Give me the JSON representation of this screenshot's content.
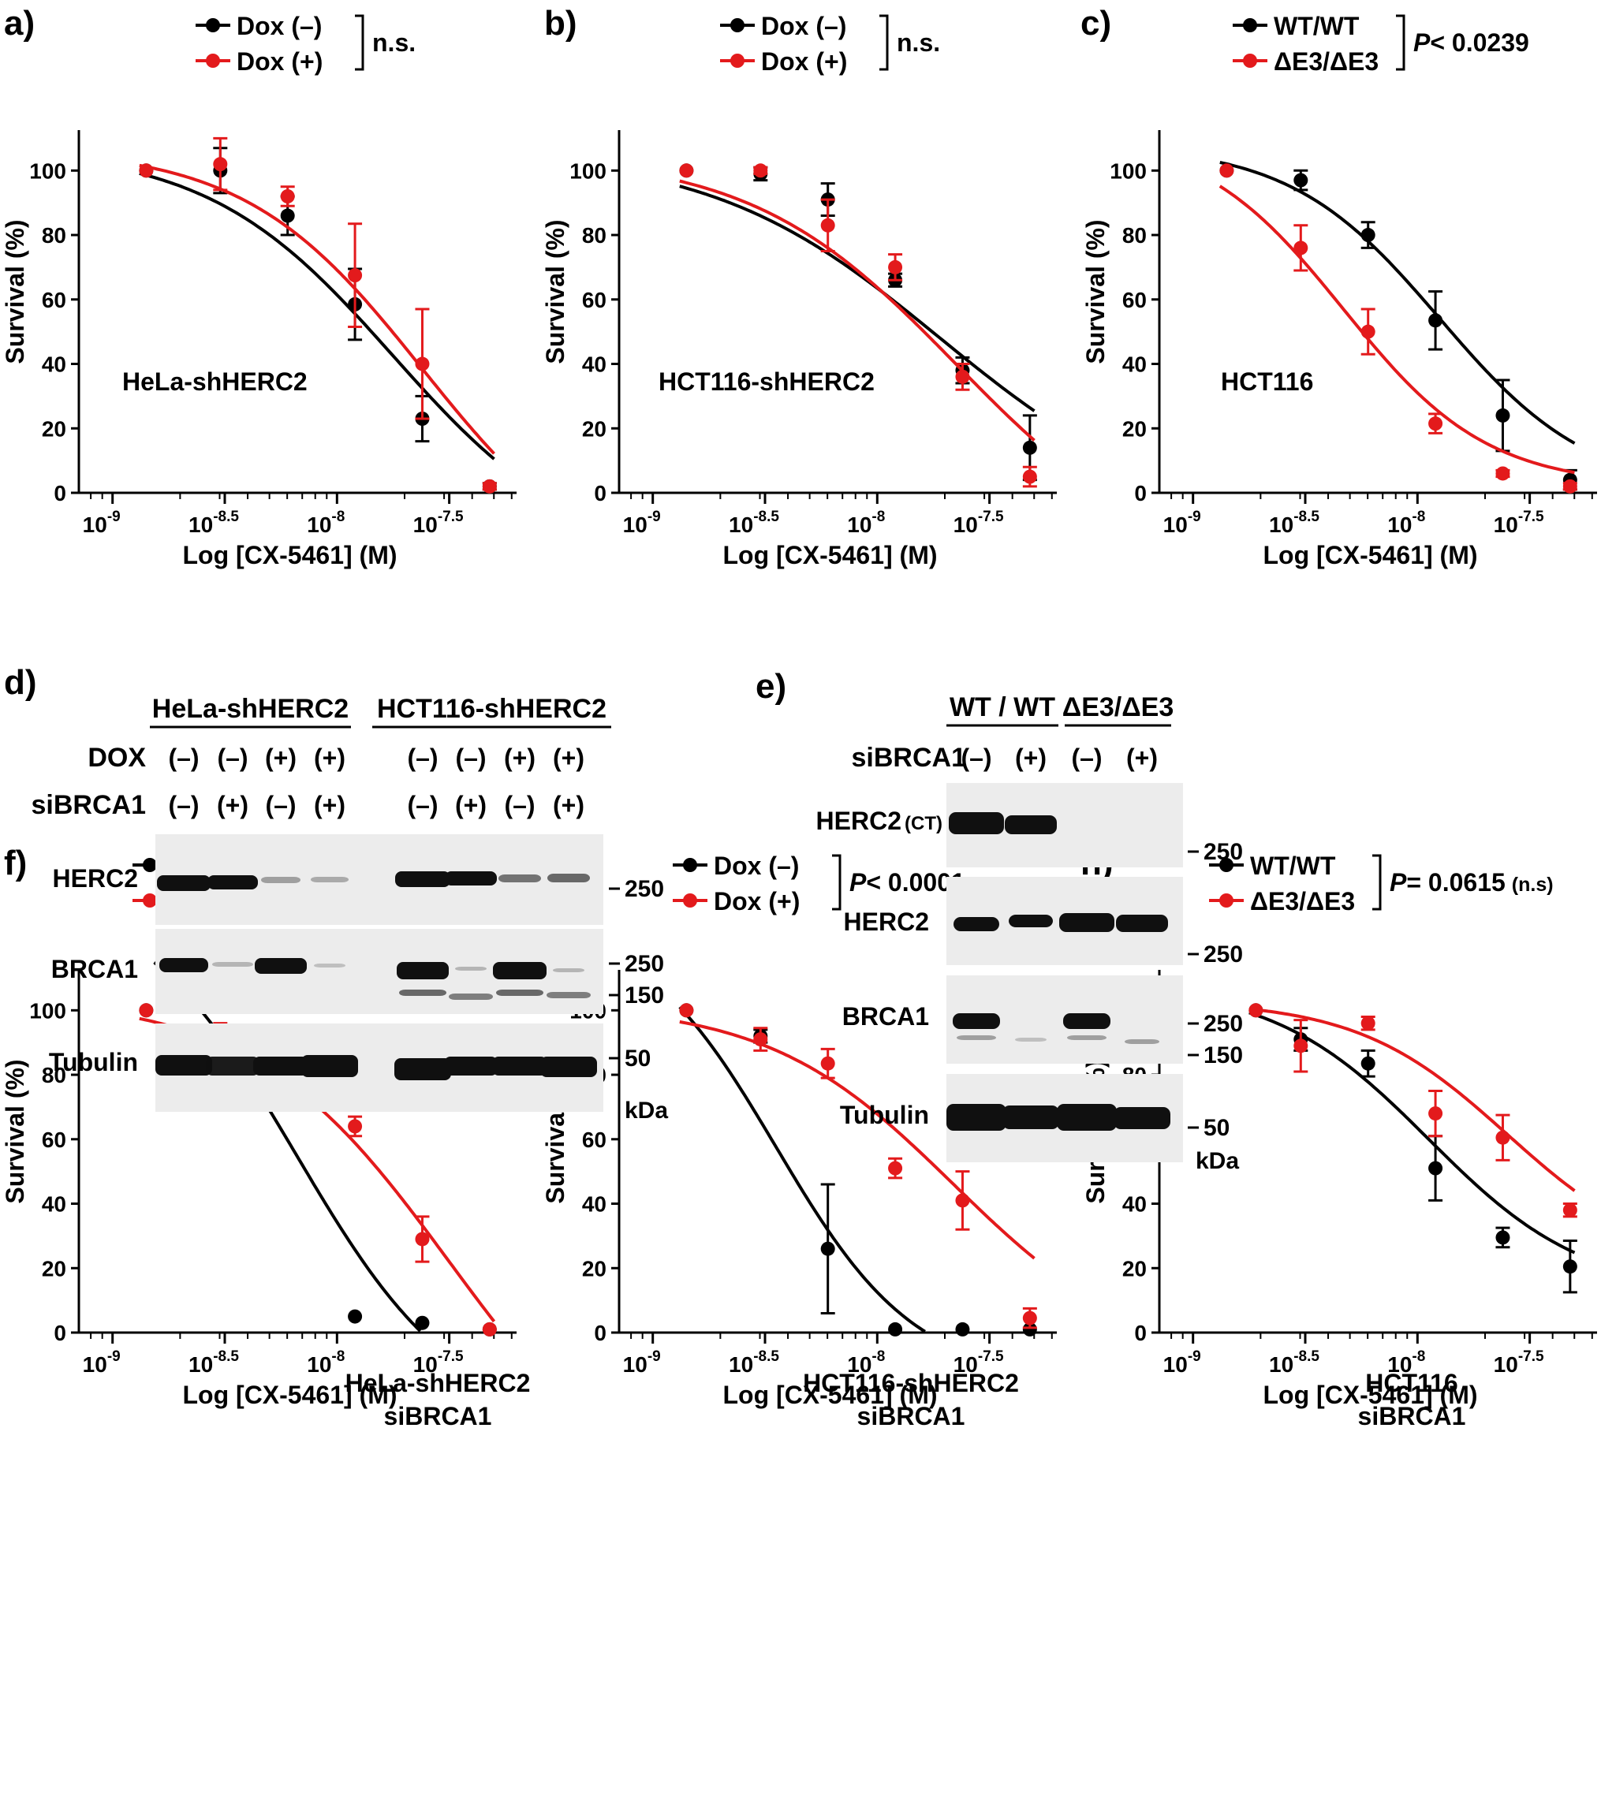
{
  "figure": {
    "colors": {
      "black": "#000000",
      "red": "#e31a1c",
      "blot_bg": "#ececec",
      "band": "#101010"
    },
    "panels_text": {
      "d": {
        "label": "d)",
        "groups": [
          "HeLa-shHERC2",
          "HCT116-shHERC2"
        ],
        "row_labels": [
          "DOX",
          "siBRCA1"
        ],
        "dox": [
          "(–)",
          "(–)",
          "(+)",
          "(+)",
          "(–)",
          "(–)",
          "(+)",
          "(+)"
        ],
        "sibrca1": [
          "(–)",
          "(+)",
          "(–)",
          "(+)",
          "(–)",
          "(+)",
          "(–)",
          "(+)"
        ],
        "blots": [
          "HERC2",
          "BRCA1",
          "Tubulin"
        ],
        "sizes": [
          "250",
          "250",
          "150",
          "50"
        ],
        "kda": "kDa"
      },
      "e": {
        "label": "e)",
        "groups": [
          "WT / WT",
          "ΔE3/ΔE3"
        ],
        "row_label": "siBRCA1",
        "sibrca1": [
          "(–)",
          "(+)",
          "(–)",
          "(+)"
        ],
        "blots": [
          "HERC2",
          "HERC2",
          "BRCA1",
          "Tubulin"
        ],
        "blot1_suffix": "(CT)",
        "sizes": [
          "250",
          "250",
          "250",
          "150",
          "50"
        ],
        "kda": "kDa"
      }
    }
  },
  "chart_data": [
    {
      "panel": "a)",
      "type": "scatter",
      "title": "HeLa-shHERC2",
      "xlabel": "Log [CX-5461] (M)",
      "ylabel": "Survival (%)",
      "xlim": [
        -9.15,
        -7.2
      ],
      "ylim": [
        0,
        115
      ],
      "grid": false,
      "x_tick_labels": [
        {
          "base": "10",
          "exp": "-9"
        },
        {
          "base": "10",
          "exp": "-8.5"
        },
        {
          "base": "10",
          "exp": "-8"
        },
        {
          "base": "10",
          "exp": "-7.5"
        }
      ],
      "x_ticks": [
        -9,
        -8.5,
        -8,
        -7.5
      ],
      "y_ticks": [
        0,
        20,
        40,
        60,
        80,
        100
      ],
      "y_tick_labels": [
        "0",
        "20",
        "40",
        "60",
        "80",
        "100"
      ],
      "legend": [
        "Dox (–)",
        "Dox (+)"
      ],
      "stat": {
        "prefix": "",
        "value": "n.s.",
        "suffix": ""
      },
      "series": [
        {
          "name": "Dox (–)",
          "color": "#000000",
          "x": [
            -8.85,
            -8.52,
            -8.22,
            -7.92,
            -7.62,
            -7.32
          ],
          "y": [
            100,
            100,
            86,
            58.5,
            23,
            2
          ],
          "err": [
            0,
            7,
            6,
            11,
            7,
            1
          ],
          "fit": {
            "top": 107,
            "bottom": -22,
            "logec50": -7.75,
            "hill": 1.05
          }
        },
        {
          "name": "Dox (+)",
          "color": "#e31a1c",
          "x": [
            -8.85,
            -8.52,
            -8.22,
            -7.92,
            -7.62,
            -7.32
          ],
          "y": [
            100,
            102,
            92,
            67.5,
            40,
            2
          ],
          "err": [
            0,
            8,
            3,
            16,
            17,
            1
          ],
          "fit": {
            "top": 107,
            "bottom": -30,
            "logec50": -7.62,
            "hill": 1.1
          }
        }
      ]
    },
    {
      "panel": "b)",
      "type": "scatter",
      "title": "HCT116-shHERC2",
      "xlabel": "Log [CX-5461] (M)",
      "ylabel": "Survival (%)",
      "xlim": [
        -9.15,
        -7.2
      ],
      "ylim": [
        0,
        115
      ],
      "grid": false,
      "x_tick_labels": [
        {
          "base": "10",
          "exp": "-9"
        },
        {
          "base": "10",
          "exp": "-8.5"
        },
        {
          "base": "10",
          "exp": "-8"
        },
        {
          "base": "10",
          "exp": "-7.5"
        }
      ],
      "x_ticks": [
        -9,
        -8.5,
        -8,
        -7.5
      ],
      "y_ticks": [
        0,
        20,
        40,
        60,
        80,
        100
      ],
      "y_tick_labels": [
        "0",
        "20",
        "40",
        "60",
        "80",
        "100"
      ],
      "legend": [
        "Dox (–)",
        "Dox (+)"
      ],
      "stat": {
        "prefix": "",
        "value": "n.s.",
        "suffix": ""
      },
      "series": [
        {
          "name": "Dox (–)",
          "color": "#000000",
          "x": [
            -8.85,
            -8.52,
            -8.22,
            -7.92,
            -7.62,
            -7.32
          ],
          "y": [
            100,
            99,
            91,
            66,
            38,
            14
          ],
          "err": [
            0,
            2,
            5,
            2,
            4,
            10
          ],
          "fit": {
            "top": 106,
            "bottom": -10,
            "logec50": -7.72,
            "hill": 0.85
          }
        },
        {
          "name": "Dox (+)",
          "color": "#e31a1c",
          "x": [
            -8.85,
            -8.52,
            -8.22,
            -7.92,
            -7.62,
            -7.32
          ],
          "y": [
            100,
            100,
            83,
            70,
            36,
            5
          ],
          "err": [
            0,
            1,
            8,
            4,
            4,
            3
          ],
          "fit": {
            "top": 105,
            "bottom": -25,
            "logec50": -7.65,
            "hill": 0.95
          }
        }
      ]
    },
    {
      "panel": "c)",
      "type": "scatter",
      "title": "HCT116",
      "xlabel": "Log [CX-5461] (M)",
      "ylabel": "Survival (%)",
      "xlim": [
        -9.15,
        -7.2
      ],
      "ylim": [
        0,
        115
      ],
      "grid": false,
      "x_tick_labels": [
        {
          "base": "10",
          "exp": "-9"
        },
        {
          "base": "10",
          "exp": "-8.5"
        },
        {
          "base": "10",
          "exp": "-8"
        },
        {
          "base": "10",
          "exp": "-7.5"
        }
      ],
      "x_ticks": [
        -9,
        -8.5,
        -8,
        -7.5
      ],
      "y_ticks": [
        0,
        20,
        40,
        60,
        80,
        100
      ],
      "y_tick_labels": [
        "0",
        "20",
        "40",
        "60",
        "80",
        "100"
      ],
      "legend": [
        "WT/WT",
        "ΔE3/ΔE3"
      ],
      "stat": {
        "prefix": "P",
        "value": "< 0.0239",
        "suffix": ""
      },
      "series": [
        {
          "name": "WT/WT",
          "color": "#000000",
          "x": [
            -8.85,
            -8.52,
            -8.22,
            -7.92,
            -7.62,
            -7.32
          ],
          "y": [
            100,
            97,
            80,
            53.5,
            24,
            4
          ],
          "err": [
            0,
            3,
            4,
            9,
            11,
            3
          ],
          "fit": {
            "top": 108,
            "bottom": 0,
            "logec50": -7.9,
            "hill": 1.3
          }
        },
        {
          "name": "ΔE3/ΔE3",
          "color": "#e31a1c",
          "x": [
            -8.85,
            -8.52,
            -8.22,
            -7.92,
            -7.62,
            -7.32
          ],
          "y": [
            100,
            76,
            50,
            21.5,
            6,
            2
          ],
          "err": [
            0,
            7,
            7,
            3,
            1,
            1
          ],
          "fit": {
            "top": 112,
            "bottom": 2,
            "logec50": -8.33,
            "hill": 1.35
          }
        }
      ]
    },
    {
      "panel": "f)",
      "type": "scatter",
      "title": "HeLa-shHERC2\nsiBRCA1",
      "xlabel": "Log [CX-5461] (M)",
      "ylabel": "Survival (%)",
      "xlim": [
        -9.15,
        -7.2
      ],
      "ylim": [
        0,
        115
      ],
      "grid": false,
      "x_tick_labels": [
        {
          "base": "10",
          "exp": "-9"
        },
        {
          "base": "10",
          "exp": "-8.5"
        },
        {
          "base": "10",
          "exp": "-8"
        },
        {
          "base": "10",
          "exp": "-7.5"
        }
      ],
      "x_ticks": [
        -9,
        -8.5,
        -8,
        -7.5
      ],
      "y_ticks": [
        0,
        20,
        40,
        60,
        80,
        100
      ],
      "y_tick_labels": [
        "0",
        "20",
        "40",
        "60",
        "80",
        "100"
      ],
      "legend": [
        "Dox (–)",
        "Dox (+)"
      ],
      "stat": {
        "prefix": "P",
        "value": "< 0.0001",
        "suffix": ""
      },
      "series": [
        {
          "name": "Dox (–)",
          "color": "#000000",
          "x": [
            -8.85,
            -8.52,
            -8.22,
            -7.92,
            -7.62,
            -7.32
          ],
          "y": [
            100,
            112,
            89,
            5,
            3,
            1
          ],
          "err": [
            0,
            7,
            4,
            0,
            0,
            0
          ],
          "fit": {
            "top": 140,
            "bottom": -30,
            "logec50": -8.18,
            "hill": 1.2
          }
        },
        {
          "name": "Dox (+)",
          "color": "#e31a1c",
          "x": [
            -8.85,
            -8.52,
            -8.22,
            -7.92,
            -7.62,
            -7.32
          ],
          "y": [
            100,
            92,
            80,
            64,
            29,
            1
          ],
          "err": [
            0,
            4,
            11,
            3,
            7,
            0
          ],
          "fit": {
            "top": 104,
            "bottom": -60,
            "logec50": -7.5,
            "hill": 1.0
          }
        }
      ]
    },
    {
      "panel": "g)",
      "type": "scatter",
      "title": "HCT116-shHERC2\nsiBRCA1",
      "xlabel": "Log [CX-5461] (M)",
      "ylabel": "Survival (%)",
      "xlim": [
        -9.15,
        -7.2
      ],
      "ylim": [
        0,
        115
      ],
      "grid": false,
      "x_tick_labels": [
        {
          "base": "10",
          "exp": "-9"
        },
        {
          "base": "10",
          "exp": "-8.5"
        },
        {
          "base": "10",
          "exp": "-8"
        },
        {
          "base": "10",
          "exp": "-7.5"
        }
      ],
      "x_ticks": [
        -9,
        -8.5,
        -8,
        -7.5
      ],
      "y_ticks": [
        0,
        20,
        40,
        60,
        80,
        100
      ],
      "y_tick_labels": [
        "0",
        "20",
        "40",
        "60",
        "80",
        "100"
      ],
      "legend": [
        "Dox (–)",
        "Dox (+)"
      ],
      "stat": {
        "prefix": "P",
        "value": "< 0.0001",
        "suffix": ""
      },
      "series": [
        {
          "name": "Dox (–)",
          "color": "#000000",
          "x": [
            -8.85,
            -8.52,
            -8.22,
            -7.92,
            -7.62,
            -7.32
          ],
          "y": [
            100,
            92,
            26,
            1,
            1,
            1
          ],
          "err": [
            0,
            2,
            20,
            0,
            0,
            0
          ],
          "fit": {
            "top": 130,
            "bottom": -15,
            "logec50": -8.45,
            "hill": 1.4
          }
        },
        {
          "name": "Dox (+)",
          "color": "#e31a1c",
          "x": [
            -8.85,
            -8.52,
            -8.22,
            -7.92,
            -7.62,
            -7.32
          ],
          "y": [
            100,
            91,
            83.5,
            51,
            41,
            4.5
          ],
          "err": [
            0,
            3.5,
            4.5,
            3,
            9,
            3
          ],
          "fit": {
            "top": 102,
            "bottom": -10,
            "logec50": -7.66,
            "hill": 1.05
          }
        }
      ]
    },
    {
      "panel": "h)",
      "type": "scatter",
      "title": "HCT116\nsiBRCA1",
      "xlabel": "Log [CX-5461] (M)",
      "ylabel": "Survival (%)",
      "xlim": [
        -9.15,
        -7.2
      ],
      "ylim": [
        0,
        115
      ],
      "grid": false,
      "x_tick_labels": [
        {
          "base": "10",
          "exp": "-9"
        },
        {
          "base": "10",
          "exp": "-8.5"
        },
        {
          "base": "10",
          "exp": "-8"
        },
        {
          "base": "10",
          "exp": "-7.5"
        }
      ],
      "x_ticks": [
        -9,
        -8.5,
        -8,
        -7.5
      ],
      "y_ticks": [
        0,
        20,
        40,
        60,
        80,
        100
      ],
      "y_tick_labels": [
        "0",
        "20",
        "40",
        "60",
        "80",
        "100"
      ],
      "legend": [
        "WT/WT",
        "ΔE3/ΔE3"
      ],
      "stat": {
        "prefix": "P",
        "value": "= 0.0615",
        "suffix": "(n.s)"
      },
      "series": [
        {
          "name": "WT/WT",
          "color": "#000000",
          "x": [
            -8.72,
            -8.52,
            -8.22,
            -7.92,
            -7.62,
            -7.32
          ],
          "y": [
            100,
            91,
            83.5,
            51,
            29.5,
            20.5
          ],
          "err": [
            0,
            3.5,
            4,
            10,
            3,
            8
          ],
          "fit": {
            "top": 108,
            "bottom": 12,
            "logec50": -7.95,
            "hill": 1.25
          }
        },
        {
          "name": "ΔE3/ΔE3",
          "color": "#e31a1c",
          "x": [
            -8.72,
            -8.52,
            -8.22,
            -7.92,
            -7.62,
            -7.32
          ],
          "y": [
            100,
            89,
            96,
            68,
            60.5,
            38
          ],
          "err": [
            0,
            8,
            2,
            7,
            7,
            2
          ],
          "fit": {
            "top": 103,
            "bottom": 20,
            "logec50": -7.6,
            "hill": 1.3
          }
        }
      ]
    }
  ]
}
